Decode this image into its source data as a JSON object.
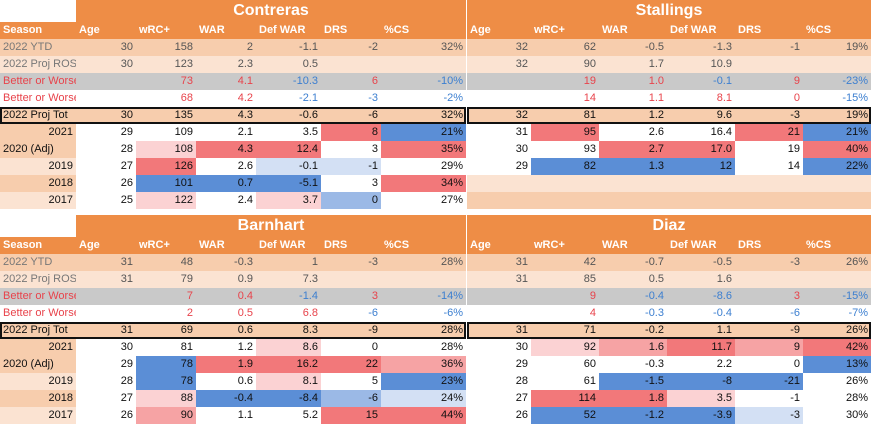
{
  "colors": {
    "orange": "#ee8d46",
    "peach": "#f7cdad",
    "peach_light": "#fbe3d2",
    "gray": "#c4c4c4",
    "white": "#ffffff",
    "red_text": "#e8434b",
    "blue_text": "#3c7fd0"
  },
  "headers": {
    "season": "Season",
    "age": "Age",
    "wrc": "wRC+",
    "war": "WAR",
    "defwar": "Def WAR",
    "drs": "DRS",
    "cs": "%CS"
  },
  "labels": {
    "ytd": "2022 YTD",
    "ros": "2022 Proj ROS",
    "maldy": "Better or Worse Maldy",
    "castro": "Better or Worse Castro",
    "proj": "2022 Proj Tot",
    "y2021": "2021",
    "y2020": "2020 (Adj)",
    "y2019": "2019",
    "y2018": "2018",
    "y2017": "2017"
  },
  "panels": {
    "contreras": {
      "name": "Contreras",
      "rows": [
        {
          "age": "30",
          "wrc": "158",
          "war": "2",
          "defwar": "-1.1",
          "drs": "-2",
          "cs": "32%"
        },
        {
          "age": "30",
          "wrc": "123",
          "war": "2.3",
          "defwar": "0.5",
          "drs": "",
          "cs": ""
        },
        {
          "age": "",
          "wrc": "73",
          "war": "4.1",
          "defwar": "-10.3",
          "drs": "6",
          "cs": "-10%"
        },
        {
          "age": "",
          "wrc": "68",
          "war": "4.2",
          "defwar": "-2.1",
          "drs": "-3",
          "cs": "-2%"
        },
        {
          "age": "30",
          "wrc": "135",
          "war": "4.3",
          "defwar": "-0.6",
          "drs": "-6",
          "cs": "32%"
        },
        {
          "age": "29",
          "wrc": "109",
          "war": "2.1",
          "defwar": "3.5",
          "drs": "8",
          "cs": "21%"
        },
        {
          "age": "28",
          "wrc": "108",
          "war": "4.3",
          "defwar": "12.4",
          "drs": "3",
          "cs": "35%"
        },
        {
          "age": "27",
          "wrc": "126",
          "war": "2.6",
          "defwar": "-0.1",
          "drs": "-1",
          "cs": "29%"
        },
        {
          "age": "26",
          "wrc": "101",
          "war": "0.7",
          "defwar": "-5.1",
          "drs": "3",
          "cs": "34%"
        },
        {
          "age": "25",
          "wrc": "122",
          "war": "2.4",
          "defwar": "3.7",
          "drs": "0",
          "cs": "27%"
        }
      ]
    },
    "stallings": {
      "name": "Stallings",
      "rows": [
        {
          "age": "32",
          "wrc": "62",
          "war": "-0.5",
          "defwar": "-1.3",
          "drs": "-1",
          "cs": "19%"
        },
        {
          "age": "32",
          "wrc": "90",
          "war": "1.7",
          "defwar": "10.9",
          "drs": "",
          "cs": ""
        },
        {
          "age": "",
          "wrc": "19",
          "war": "1.0",
          "defwar": "-0.1",
          "drs": "9",
          "cs": "-23%"
        },
        {
          "age": "",
          "wrc": "14",
          "war": "1.1",
          "defwar": "8.1",
          "drs": "0",
          "cs": "-15%"
        },
        {
          "age": "32",
          "wrc": "81",
          "war": "1.2",
          "defwar": "9.6",
          "drs": "-3",
          "cs": "19%"
        },
        {
          "age": "31",
          "wrc": "95",
          "war": "2.6",
          "defwar": "16.4",
          "drs": "21",
          "cs": "21%"
        },
        {
          "age": "30",
          "wrc": "93",
          "war": "2.7",
          "defwar": "17.0",
          "drs": "19",
          "cs": "40%"
        },
        {
          "age": "29",
          "wrc": "82",
          "war": "1.3",
          "defwar": "12",
          "drs": "14",
          "cs": "22%"
        },
        {
          "age": "",
          "wrc": "",
          "war": "",
          "defwar": "",
          "drs": "",
          "cs": ""
        },
        {
          "age": "",
          "wrc": "",
          "war": "",
          "defwar": "",
          "drs": "",
          "cs": ""
        }
      ]
    },
    "barnhart": {
      "name": "Barnhart",
      "rows": [
        {
          "age": "31",
          "wrc": "48",
          "war": "-0.3",
          "defwar": "1",
          "drs": "-3",
          "cs": "28%"
        },
        {
          "age": "31",
          "wrc": "79",
          "war": "0.9",
          "defwar": "7.3",
          "drs": "",
          "cs": ""
        },
        {
          "age": "",
          "wrc": "7",
          "war": "0.4",
          "defwar": "-1.4",
          "drs": "3",
          "cs": "-14%"
        },
        {
          "age": "",
          "wrc": "2",
          "war": "0.5",
          "defwar": "6.8",
          "drs": "-6",
          "cs": "-6%"
        },
        {
          "age": "31",
          "wrc": "69",
          "war": "0.6",
          "defwar": "8.3",
          "drs": "-9",
          "cs": "28%"
        },
        {
          "age": "30",
          "wrc": "81",
          "war": "1.2",
          "defwar": "8.6",
          "drs": "0",
          "cs": "28%"
        },
        {
          "age": "29",
          "wrc": "78",
          "war": "1.9",
          "defwar": "16.2",
          "drs": "22",
          "cs": "36%"
        },
        {
          "age": "28",
          "wrc": "78",
          "war": "0.6",
          "defwar": "8.1",
          "drs": "5",
          "cs": "23%"
        },
        {
          "age": "27",
          "wrc": "88",
          "war": "-0.4",
          "defwar": "-8.4",
          "drs": "-6",
          "cs": "24%"
        },
        {
          "age": "26",
          "wrc": "90",
          "war": "1.1",
          "defwar": "5.2",
          "drs": "15",
          "cs": "44%"
        }
      ]
    },
    "diaz": {
      "name": "Diaz",
      "rows": [
        {
          "age": "31",
          "wrc": "42",
          "war": "-0.7",
          "defwar": "-0.5",
          "drs": "-3",
          "cs": "26%"
        },
        {
          "age": "31",
          "wrc": "85",
          "war": "0.5",
          "defwar": "1.6",
          "drs": "",
          "cs": ""
        },
        {
          "age": "",
          "wrc": "9",
          "war": "-0.4",
          "defwar": "-8.6",
          "drs": "3",
          "cs": "-15%"
        },
        {
          "age": "",
          "wrc": "4",
          "war": "-0.3",
          "defwar": "-0.4",
          "drs": "-6",
          "cs": "-7%"
        },
        {
          "age": "31",
          "wrc": "71",
          "war": "-0.2",
          "defwar": "1.1",
          "drs": "-9",
          "cs": "26%"
        },
        {
          "age": "30",
          "wrc": "92",
          "war": "1.6",
          "defwar": "11.7",
          "drs": "9",
          "cs": "42%"
        },
        {
          "age": "29",
          "wrc": "60",
          "war": "-0.3",
          "defwar": "2.2",
          "drs": "0",
          "cs": "13%"
        },
        {
          "age": "28",
          "wrc": "61",
          "war": "-1.5",
          "defwar": "-8",
          "drs": "-21",
          "cs": "26%"
        },
        {
          "age": "27",
          "wrc": "114",
          "war": "1.8",
          "defwar": "3.5",
          "drs": "-1",
          "cs": "28%"
        },
        {
          "age": "26",
          "wrc": "52",
          "war": "-1.2",
          "defwar": "-3.9",
          "drs": "-3",
          "cs": "30%"
        }
      ]
    }
  }
}
